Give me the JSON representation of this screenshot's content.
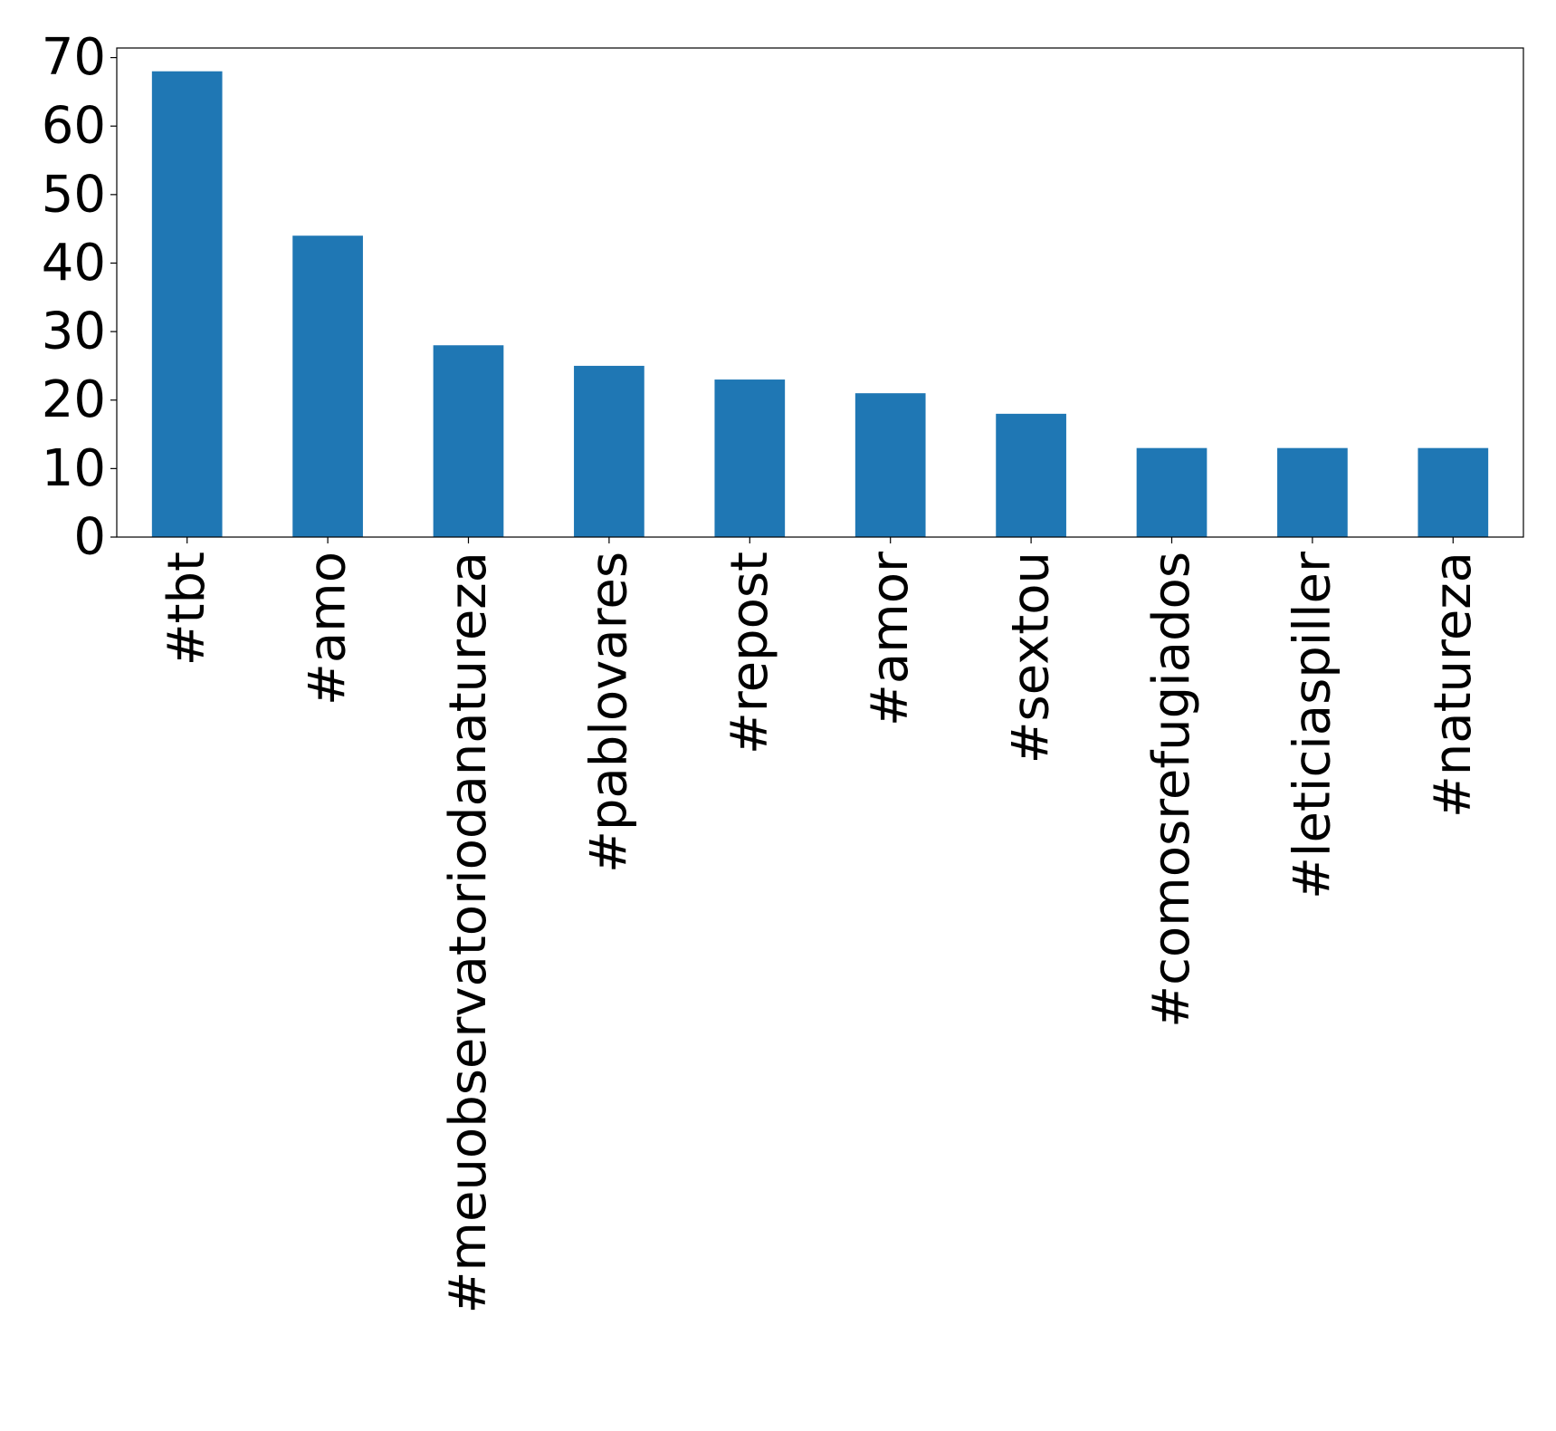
{
  "chart_data": {
    "type": "bar",
    "title": "",
    "xlabel": "",
    "ylabel": "",
    "categories": [
      "#tbt",
      "#amo",
      "#meuobservatoriodanatureza",
      "#pablovares",
      "#repost",
      "#amor",
      "#sextou",
      "#comosrefugiados",
      "#leticiaspiller",
      "#natureza"
    ],
    "values": [
      68,
      44,
      28,
      25,
      23,
      21,
      18,
      13,
      13,
      13
    ],
    "ylim": [
      0,
      71.4
    ],
    "yticks": [
      0,
      10,
      20,
      30,
      40,
      50,
      60,
      70
    ],
    "grid": false,
    "legend": "none",
    "bar_color": "#1f77b4"
  }
}
